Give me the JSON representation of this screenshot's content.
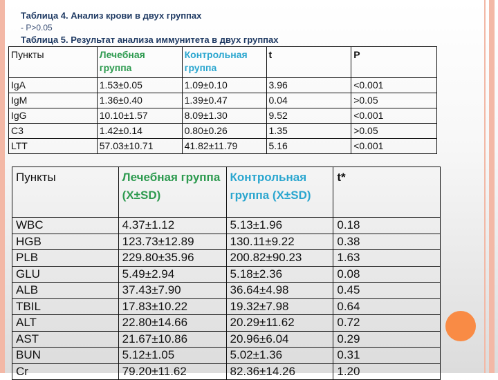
{
  "captions": {
    "table4_title": "Таблица 4. Анализ крови в двух группах",
    "table4_note": "- P>0.05",
    "table5_title": "Таблица 5. Результат анализа иммунитета в двух группах"
  },
  "colors": {
    "treatment": "#2d9a4f",
    "control": "#2aa6cf",
    "accent": "#f98b45",
    "border": "#f3b8a6"
  },
  "table5": {
    "headers": [
      "Пункты",
      "Лечебная группа",
      "Контрольная группа",
      "t",
      "P"
    ],
    "rows": [
      [
        "IgA",
        "1.53±0.05",
        "1.09±0.10",
        "3.96",
        "<0.001"
      ],
      [
        "IgM",
        "1.36±0.40",
        "1.39±0.47",
        "0.04",
        ">0.05"
      ],
      [
        "IgG",
        "10.10±1.57",
        "8.09±1.30",
        "9.52",
        "<0.001"
      ],
      [
        "C3",
        "1.42±0.14",
        "0.80±0.26",
        "1.35",
        ">0.05"
      ],
      [
        "LTT",
        "57.03±10.71",
        "41.82±11.79",
        "5.16",
        "<0.001"
      ]
    ]
  },
  "table4": {
    "headers": [
      "Пункты",
      "Лечебная группа (X±SD)",
      "Контрольная группа (X±SD)",
      "t*"
    ],
    "rows": [
      [
        "WBC",
        "4.37±1.12",
        "5.13±1.96",
        "0.18"
      ],
      [
        "HGB",
        "123.73±12.89",
        "130.11±9.22",
        "0.38"
      ],
      [
        "PLB",
        "229.80±35.96",
        "200.82±90.23",
        "1.63"
      ],
      [
        "GLU",
        "5.49±2.94",
        "5.18±2.36",
        "0.08"
      ],
      [
        "ALB",
        "37.43±7.90",
        "36.64±4.98",
        "0.45"
      ],
      [
        "TBIL",
        "17.83±10.22",
        "19.32±7.98",
        "0.64"
      ],
      [
        "ALT",
        "22.80±14.66",
        "20.29±11.62",
        "0.72"
      ],
      [
        "AST",
        "21.67±10.86",
        "20.96±6.04",
        "0.29"
      ],
      [
        "BUN",
        "5.12±1.05",
        "5.02±1.36",
        "0.31"
      ],
      [
        "Cr",
        "79.20±11.62",
        "82.36±14.26",
        "1.20"
      ]
    ]
  }
}
